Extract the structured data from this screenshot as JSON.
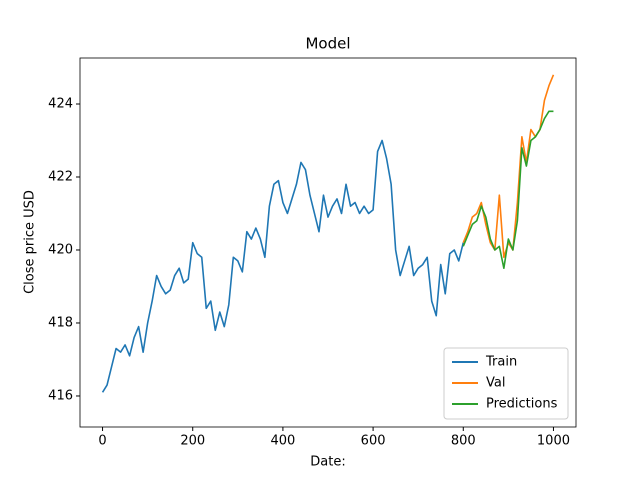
{
  "chart_data": {
    "type": "line",
    "title": "Model",
    "x_label": "Date:",
    "y_label": "Close price USD",
    "xlim": [
      -50,
      1050
    ],
    "ylim": [
      415.15,
      425.26
    ],
    "xticks": [
      0,
      200,
      400,
      600,
      800,
      1000
    ],
    "yticks": [
      416,
      418,
      420,
      422,
      424
    ],
    "legend": "lower right",
    "grid": false,
    "series": [
      {
        "name": "Train",
        "color": "#1f77b4",
        "x": [
          0,
          10,
          20,
          30,
          40,
          50,
          60,
          70,
          80,
          90,
          100,
          110,
          120,
          130,
          140,
          150,
          160,
          170,
          180,
          190,
          200,
          210,
          220,
          230,
          240,
          250,
          260,
          270,
          280,
          290,
          300,
          310,
          320,
          330,
          340,
          350,
          360,
          370,
          380,
          390,
          400,
          410,
          420,
          430,
          440,
          450,
          460,
          470,
          480,
          490,
          500,
          510,
          520,
          530,
          540,
          550,
          560,
          570,
          580,
          590,
          600,
          610,
          620,
          630,
          640,
          650,
          660,
          670,
          680,
          690,
          700,
          710,
          720,
          730,
          740,
          750,
          760,
          770,
          780,
          790,
          800
        ],
        "values": [
          416.1,
          416.3,
          416.8,
          417.3,
          417.2,
          417.4,
          417.1,
          417.6,
          417.9,
          417.2,
          418.0,
          418.6,
          419.3,
          419.0,
          418.8,
          418.9,
          419.3,
          419.5,
          419.1,
          419.2,
          420.2,
          419.9,
          419.8,
          418.4,
          418.6,
          417.8,
          418.3,
          417.9,
          418.5,
          419.8,
          419.7,
          419.4,
          420.5,
          420.3,
          420.6,
          420.3,
          419.8,
          421.2,
          421.8,
          421.9,
          421.3,
          421.0,
          421.4,
          421.8,
          422.4,
          422.2,
          421.5,
          421.0,
          420.5,
          421.5,
          420.9,
          421.2,
          421.4,
          421.0,
          421.8,
          421.2,
          421.3,
          421.0,
          421.2,
          421.0,
          421.1,
          422.7,
          423.0,
          422.5,
          421.8,
          420.0,
          419.3,
          419.7,
          420.1,
          419.3,
          419.5,
          419.6,
          419.8,
          418.6,
          418.2,
          419.6,
          418.8,
          419.9,
          420.0,
          419.7,
          420.2
        ]
      },
      {
        "name": "Val",
        "color": "#ff7f0e",
        "x": [
          800,
          810,
          820,
          830,
          840,
          850,
          860,
          870,
          880,
          890,
          900,
          910,
          920,
          930,
          940,
          950,
          960,
          970,
          980,
          990,
          1000
        ],
        "values": [
          420.2,
          420.5,
          420.9,
          421.0,
          421.3,
          420.7,
          420.2,
          420.0,
          421.5,
          419.8,
          420.2,
          420.0,
          421.3,
          423.1,
          422.4,
          423.3,
          423.1,
          423.3,
          424.1,
          424.5,
          424.8
        ]
      },
      {
        "name": "Predictions",
        "color": "#2ca02c",
        "x": [
          800,
          810,
          820,
          830,
          840,
          850,
          860,
          870,
          880,
          890,
          900,
          910,
          920,
          930,
          940,
          950,
          960,
          970,
          980,
          990,
          1000
        ],
        "values": [
          420.1,
          420.4,
          420.7,
          420.8,
          421.2,
          420.9,
          420.3,
          420.0,
          420.1,
          419.5,
          420.3,
          420.0,
          420.8,
          422.8,
          422.3,
          423.0,
          423.1,
          423.3,
          423.6,
          423.8,
          423.8
        ]
      }
    ]
  }
}
